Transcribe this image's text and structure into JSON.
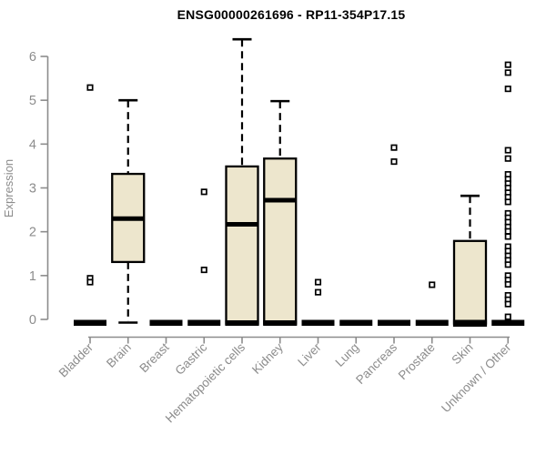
{
  "chart_data": {
    "type": "boxplot",
    "title": "ENSG00000261696 - RP11-354P17.15",
    "ylabel": "Expression",
    "xlabel": "",
    "ylim": [
      0,
      6.5
    ],
    "yticks": [
      0,
      1,
      2,
      3,
      4,
      5,
      6
    ],
    "grid": false,
    "legend": "none",
    "categories": [
      "Bladder",
      "Brain",
      "Breast",
      "Gastric",
      "Hematopoietic cells",
      "Kidney",
      "Liver",
      "Lung",
      "Pancreas",
      "Prostate",
      "Skin",
      "Unknown / Other"
    ],
    "colors": {
      "box_fill": "#EDE6CD",
      "box_border": "#000000",
      "median": "#000000",
      "whisker": "#000000",
      "outlier_fill": "#FFFFFF",
      "axis": "#8C8C8C",
      "tick_label": "#8C8C8C",
      "title_text": "#000000",
      "background": "#FFFFFF"
    },
    "series": [
      {
        "category": "Bladder",
        "min": 0,
        "q1": 0,
        "median": 0,
        "q3": 0,
        "max": 0,
        "outliers": [
          5.29,
          0.94,
          0.85
        ]
      },
      {
        "category": "Brain",
        "min": 0,
        "q1": 1.31,
        "median": 2.3,
        "q3": 3.32,
        "max": 5.0,
        "outliers": []
      },
      {
        "category": "Breast",
        "min": 0,
        "q1": 0,
        "median": 0,
        "q3": 0,
        "max": 0,
        "outliers": []
      },
      {
        "category": "Gastric",
        "min": 0,
        "q1": 0,
        "median": 0,
        "q3": 0,
        "max": 0,
        "outliers": [
          2.91,
          1.13
        ]
      },
      {
        "category": "Hematopoietic cells",
        "min": 0,
        "q1": 0,
        "median": 2.17,
        "q3": 3.49,
        "max": 6.39,
        "outliers": []
      },
      {
        "category": "Kidney",
        "min": 0,
        "q1": 0,
        "median": 2.72,
        "q3": 3.67,
        "max": 4.98,
        "outliers": []
      },
      {
        "category": "Liver",
        "min": 0,
        "q1": 0,
        "median": 0,
        "q3": 0,
        "max": 0,
        "outliers": [
          0.85,
          0.62
        ]
      },
      {
        "category": "Lung",
        "min": 0,
        "q1": 0,
        "median": 0,
        "q3": 0,
        "max": 0,
        "outliers": []
      },
      {
        "category": "Pancreas",
        "min": 0,
        "q1": 0,
        "median": 0,
        "q3": 0,
        "max": 0,
        "outliers": [
          3.92,
          3.6
        ]
      },
      {
        "category": "Prostate",
        "min": 0,
        "q1": 0,
        "median": 0,
        "q3": 0,
        "max": 0,
        "outliers": [
          0.79
        ]
      },
      {
        "category": "Skin",
        "min": 0,
        "q1": 0,
        "median": 0,
        "q3": 1.79,
        "max": 2.82,
        "outliers": []
      },
      {
        "category": "Unknown / Other",
        "min": 0,
        "q1": 0,
        "median": 0,
        "q3": 0,
        "max": 0,
        "outliers": [
          5.81,
          5.63,
          5.26,
          3.86,
          3.67,
          3.31,
          3.2,
          3.1,
          3.0,
          2.89,
          2.79,
          2.68,
          2.42,
          2.32,
          2.22,
          2.11,
          2.01,
          1.89,
          1.66,
          1.56,
          1.45,
          1.35,
          1.25,
          1.0,
          0.9,
          0.8,
          0.55,
          0.45,
          0.35,
          0.06
        ]
      }
    ]
  }
}
